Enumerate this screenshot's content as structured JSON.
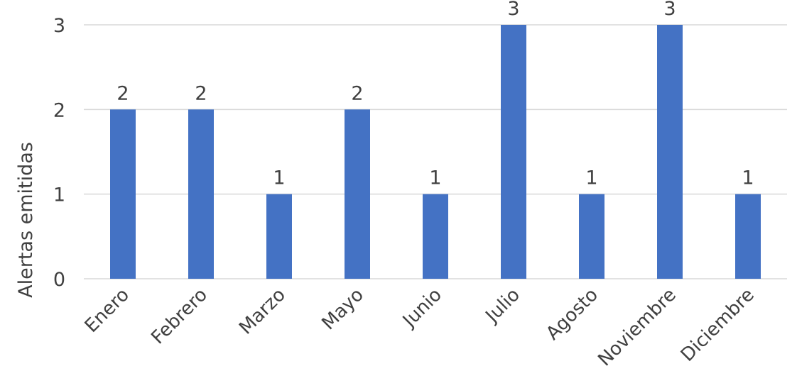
{
  "chart_data": {
    "type": "bar",
    "categories": [
      "Enero",
      "Febrero",
      "Marzo",
      "Mayo",
      "Junio",
      "Julio",
      "Agosto",
      "Noviembre",
      "Diciembre"
    ],
    "values": [
      2,
      2,
      1,
      2,
      1,
      3,
      1,
      3,
      1
    ],
    "title": "",
    "xlabel": "",
    "ylabel": "Alertas emitidas",
    "ylim": [
      0,
      3
    ],
    "yticks": [
      0,
      1,
      2,
      3
    ],
    "grid": true,
    "legend": "none",
    "bar_color": "#4472C4",
    "grid_color": "#D9D9D9"
  }
}
